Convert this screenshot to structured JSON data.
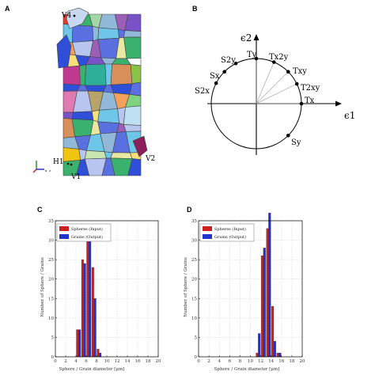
{
  "panels": {
    "A": {
      "letter": "A",
      "labels": [
        "V4",
        "H1",
        "V1",
        "V2"
      ],
      "triad_labels": [
        "x",
        "z"
      ]
    },
    "B": {
      "letter": "B",
      "axis_y": "ϵ2",
      "axis_x": "ϵ1",
      "points": [
        {
          "name": "Ty"
        },
        {
          "name": "Tx2y"
        },
        {
          "name": "S2y"
        },
        {
          "name": "Txy"
        },
        {
          "name": "Sx"
        },
        {
          "name": "T2xy"
        },
        {
          "name": "S2x"
        },
        {
          "name": "Tx"
        },
        {
          "name": "Sy"
        }
      ]
    },
    "C": {
      "letter": "C"
    },
    "D": {
      "letter": "D"
    }
  },
  "colors": {
    "input": "#cc1f1f",
    "output": "#2233cc"
  },
  "chart_data": [
    {
      "type": "bar",
      "panel": "C",
      "xlabel": "Sphere / Grain diameter [μm]",
      "ylabel": "Number of Sphere / Grains",
      "xlim": [
        0,
        20
      ],
      "ylim": [
        0,
        35
      ],
      "xticks": [
        0,
        2,
        4,
        6,
        8,
        10,
        12,
        14,
        16,
        18,
        20
      ],
      "yticks": [
        0,
        5,
        10,
        15,
        20,
        25,
        30,
        35
      ],
      "legend": "top-left",
      "series": [
        {
          "name": "Spheres (Input)",
          "x": [
            4.5,
            5.5,
            6.5,
            7.5,
            8.5
          ],
          "values": [
            7,
            25,
            33,
            23,
            2
          ]
        },
        {
          "name": "Grains (Output)",
          "x": [
            4.5,
            5.5,
            6.5,
            7.5,
            8.5
          ],
          "values": [
            7,
            24,
            33,
            15,
            1
          ]
        }
      ]
    },
    {
      "type": "bar",
      "panel": "D",
      "xlabel": "Sphere / Grain diameter [μm]",
      "ylabel": "Number of Sphere / Grains",
      "xlim": [
        0,
        20
      ],
      "ylim": [
        0,
        35
      ],
      "xticks": [
        0,
        2,
        4,
        6,
        8,
        10,
        12,
        14,
        16,
        18,
        20
      ],
      "yticks": [
        0,
        5,
        10,
        15,
        20,
        25,
        30,
        35
      ],
      "legend": "top-left",
      "series": [
        {
          "name": "Spheres (Input)",
          "x": [
            11.5,
            12.5,
            13.5,
            14.5,
            15.5
          ],
          "values": [
            1,
            26,
            33,
            13,
            1
          ]
        },
        {
          "name": "Grains (Output)",
          "x": [
            11.5,
            12.5,
            13.5,
            14.5,
            15.5
          ],
          "values": [
            6,
            28,
            37,
            4,
            1
          ]
        }
      ]
    }
  ]
}
